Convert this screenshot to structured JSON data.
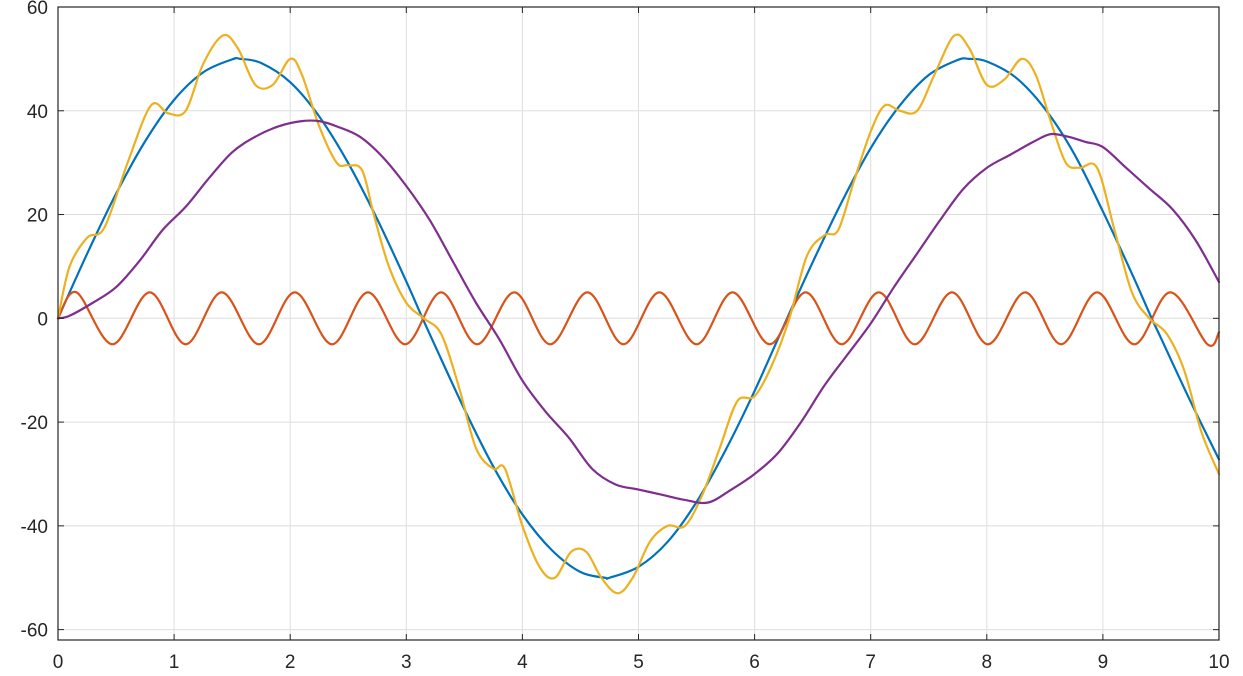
{
  "chart_data": {
    "type": "line",
    "title": "",
    "xlabel": "",
    "ylabel": "",
    "xlim": [
      0,
      10
    ],
    "ylim": [
      -62,
      60
    ],
    "x_ticks": [
      0,
      1,
      2,
      3,
      4,
      5,
      6,
      7,
      8,
      9,
      10
    ],
    "x_tick_labels": [
      "0",
      "1",
      "2",
      "3",
      "4",
      "5",
      "6",
      "7",
      "8",
      "9",
      "10"
    ],
    "y_ticks": [
      60,
      40,
      20,
      0,
      -20,
      -40,
      -60
    ],
    "y_tick_labels": [
      "60",
      "40",
      "20",
      "0",
      "-20",
      "-40",
      "-60"
    ],
    "grid": true,
    "legend": "none",
    "series": [
      {
        "color": "#0072BD",
        "x": [
          0,
          0.25,
          0.5,
          0.75,
          1,
          1.25,
          1.5,
          1.57,
          1.75,
          2,
          2.25,
          2.5,
          2.75,
          3,
          3.14,
          3.25,
          3.5,
          3.75,
          4,
          4.25,
          4.5,
          4.71,
          4.75,
          5,
          5.25,
          5.5,
          5.75,
          6,
          6.28,
          6.5,
          6.75,
          7,
          7.25,
          7.5,
          7.75,
          7.85,
          8,
          8.25,
          8.5,
          8.75,
          9,
          9.25,
          9.42,
          9.5,
          9.75,
          10
        ],
        "y": [
          0,
          12.4,
          24.0,
          34.1,
          42.1,
          47.4,
          49.9,
          50.0,
          49.2,
          45.5,
          38.9,
          29.9,
          19.1,
          7.1,
          0,
          -5.4,
          -17.5,
          -28.6,
          -37.8,
          -44.6,
          -48.9,
          -50.0,
          -50.0,
          -47.9,
          -43.1,
          -35.4,
          -25.4,
          -14.0,
          0,
          10.8,
          22.4,
          32.8,
          41.0,
          46.9,
          49.8,
          50.0,
          49.5,
          46.4,
          40.4,
          31.8,
          20.6,
          8.6,
          0,
          -3.8,
          -15.8,
          -27.2
        ]
      },
      {
        "color": "#D95319",
        "amplitude": 5,
        "frequency_rad": 10,
        "x": [
          0,
          0.16,
          0.47,
          0.79,
          1.1,
          1.41,
          1.73,
          2.04,
          2.36,
          2.67,
          2.99,
          3.3,
          3.61,
          3.93,
          4.24,
          4.56,
          4.87,
          5.18,
          5.5,
          5.81,
          6.13,
          6.44,
          6.75,
          7.07,
          7.38,
          7.7,
          8.01,
          8.33,
          8.64,
          8.95,
          9.27,
          9.58,
          9.9,
          10
        ],
        "y": [
          0,
          5,
          -5,
          5,
          -5,
          5,
          -5,
          5,
          -5,
          5,
          -5,
          5,
          -5,
          5,
          -5,
          5,
          -5,
          5,
          -5,
          5,
          -5,
          5,
          -5,
          5,
          -5,
          5,
          -5,
          5,
          -5,
          5,
          -5,
          5,
          -5,
          -2.7
        ]
      },
      {
        "color": "#EDB120",
        "x": [
          0,
          0.1,
          0.25,
          0.4,
          0.6,
          0.8,
          0.95,
          1.1,
          1.25,
          1.42,
          1.55,
          1.7,
          1.85,
          2.0,
          2.1,
          2.25,
          2.4,
          2.5,
          2.62,
          2.72,
          2.85,
          3.0,
          3.15,
          3.3,
          3.45,
          3.6,
          3.75,
          3.85,
          4.0,
          4.15,
          4.28,
          4.42,
          4.55,
          4.68,
          4.82,
          4.95,
          5.1,
          5.25,
          5.4,
          5.55,
          5.7,
          5.85,
          6.0,
          6.15,
          6.3,
          6.45,
          6.6,
          6.72,
          6.85,
          7.0,
          7.12,
          7.25,
          7.4,
          7.55,
          7.72,
          7.85,
          8.0,
          8.15,
          8.3,
          8.42,
          8.55,
          8.68,
          8.8,
          8.95,
          9.1,
          9.25,
          9.4,
          9.55,
          9.7,
          9.85,
          10.0
        ],
        "y": [
          0,
          10,
          15.5,
          17.5,
          30,
          41,
          39.5,
          40,
          49,
          54.5,
          52,
          45,
          45,
          50,
          47,
          37,
          30,
          29.5,
          28.5,
          20,
          10,
          3,
          0,
          -3,
          -13,
          -25,
          -29,
          -29,
          -40,
          -48,
          -50,
          -45,
          -45,
          -50,
          -53,
          -50,
          -43,
          -40,
          -40,
          -34,
          -25,
          -16,
          -15,
          -9,
          0,
          12,
          16,
          17,
          26,
          36,
          41,
          40,
          40,
          47,
          54.5,
          52,
          45,
          46,
          50,
          47,
          38,
          30,
          29,
          29,
          17,
          5,
          0,
          -3,
          -10,
          -22,
          -30
        ]
      },
      {
        "color": "#7E2F8E",
        "x": [
          0,
          0.1,
          0.3,
          0.5,
          0.7,
          0.9,
          1.1,
          1.3,
          1.5,
          1.7,
          1.9,
          2.1,
          2.25,
          2.4,
          2.6,
          2.8,
          3.0,
          3.2,
          3.4,
          3.6,
          3.8,
          4.0,
          4.2,
          4.4,
          4.6,
          4.8,
          5.0,
          5.2,
          5.4,
          5.6,
          5.8,
          6.0,
          6.2,
          6.4,
          6.6,
          6.8,
          7.0,
          7.2,
          7.4,
          7.6,
          7.8,
          8.0,
          8.2,
          8.4,
          8.55,
          8.7,
          8.85,
          9.0,
          9.2,
          9.4,
          9.6,
          9.8,
          10.0
        ],
        "y": [
          0,
          0.5,
          3,
          6,
          11,
          17,
          21.5,
          27,
          32,
          35,
          37,
          38,
          38,
          37,
          35,
          31,
          25.5,
          19,
          11,
          3,
          -4,
          -12,
          -18,
          -23,
          -29,
          -32,
          -33,
          -34,
          -35,
          -35.5,
          -33,
          -30,
          -26,
          -20,
          -13,
          -7,
          -1,
          6,
          12.5,
          19,
          25,
          29,
          31.5,
          34,
          35.5,
          35,
          34,
          33,
          29,
          25,
          21,
          15,
          7
        ]
      }
    ]
  }
}
